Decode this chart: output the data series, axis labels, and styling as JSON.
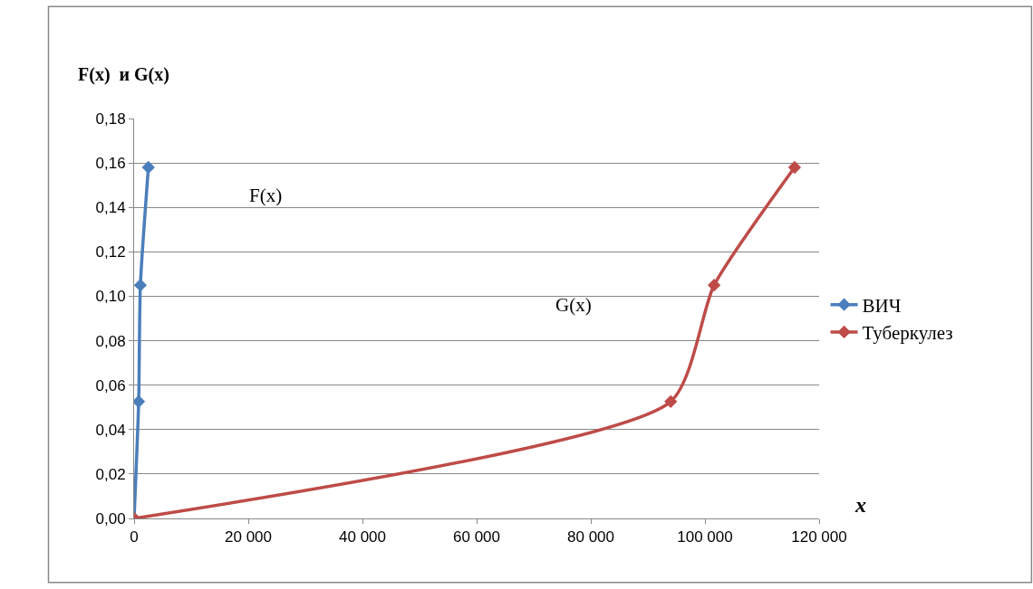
{
  "chart_data": {
    "type": "line",
    "xlabel": "x",
    "ylabel": "F(x)  и G(x)",
    "series": [
      {
        "name": "ВИЧ",
        "color": "#4a7ebb",
        "x": [
          0,
          800,
          1100,
          2500
        ],
        "values": [
          0,
          0.0526,
          0.105,
          0.158
        ]
      },
      {
        "name": "Туберкулез",
        "color": "#be4b48",
        "x": [
          0,
          94000,
          101600,
          115700
        ],
        "values": [
          0,
          0.0526,
          0.105,
          0.158
        ]
      }
    ],
    "annotations": [
      "F(x)",
      "G(x)"
    ],
    "xlim": [
      0,
      120000
    ],
    "xticks": [
      0,
      {
        "value": 20000,
        "label": "20 000"
      },
      {
        "value": 40000,
        "label": "40 000"
      },
      {
        "value": 60000,
        "label": "60 000"
      },
      {
        "value": 80000,
        "label": "80 000"
      },
      {
        "value": 100000,
        "label": "100 000"
      },
      {
        "value": 120000,
        "label": "120 000"
      }
    ],
    "ylim": [
      0,
      0.18
    ],
    "yticks": [
      {
        "value": 0,
        "label": "0,00"
      },
      {
        "value": 0.02,
        "label": "0,02"
      },
      {
        "value": 0.04,
        "label": "0,04"
      },
      {
        "value": 0.06,
        "label": "0,06"
      },
      {
        "value": 0.08,
        "label": "0,08"
      },
      {
        "value": 0.1,
        "label": "0,10"
      },
      {
        "value": 0.12,
        "label": "0,12"
      },
      {
        "value": 0.14,
        "label": "0,14"
      },
      {
        "value": 0.16,
        "label": "0,16"
      },
      {
        "value": 0.18,
        "label": "0,18"
      }
    ],
    "grid": "y",
    "legend": "right",
    "marker": "diamond",
    "line_style": "solid"
  }
}
